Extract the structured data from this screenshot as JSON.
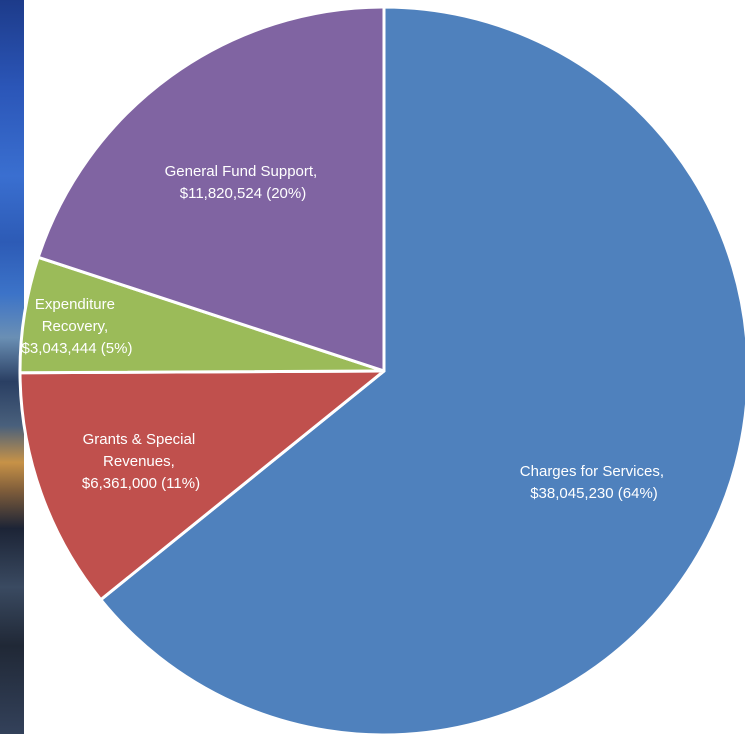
{
  "chart_data": {
    "type": "pie",
    "title": "",
    "start_angle_deg": 0,
    "direction": "clockwise",
    "slices": [
      {
        "name": "Charges for Services",
        "value": 38045230,
        "percent": 64,
        "color": "#4f81bd",
        "label_line1": "Charges for Services,",
        "label_line2": "$38,045,230 (64%)"
      },
      {
        "name": "Grants & Special Revenues",
        "value": 6361000,
        "percent": 11,
        "color": "#c0504d",
        "label_line1": "Grants & Special",
        "label_line2": "Revenues,",
        "label_line3": "$6,361,000 (11%)"
      },
      {
        "name": "Expenditure Recovery",
        "value": 3043444,
        "percent": 5,
        "color": "#9bbb59",
        "label_line1": "Expenditure",
        "label_line2": "Recovery,",
        "label_line3": "$3,043,444 (5%)"
      },
      {
        "name": "General Fund Support",
        "value": 11820524,
        "percent": 20,
        "color": "#8064a2",
        "label_line1": "General Fund Support,",
        "label_line2": "$11,820,524 (20%)"
      }
    ]
  }
}
